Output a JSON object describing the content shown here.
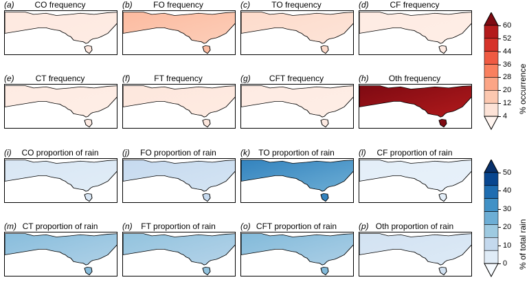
{
  "panels": [
    {
      "letter": "(a)",
      "title": "CO frequency",
      "level": 0.06,
      "colormap": "reds"
    },
    {
      "letter": "(b)",
      "title": "FO frequency",
      "level": 0.22,
      "colormap": "reds"
    },
    {
      "letter": "(c)",
      "title": "TO frequency",
      "level": 0.12,
      "colormap": "reds"
    },
    {
      "letter": "(d)",
      "title": "CF frequency",
      "level": 0.05,
      "colormap": "reds"
    },
    {
      "letter": "(e)",
      "title": "CT frequency",
      "level": 0.05,
      "colormap": "reds"
    },
    {
      "letter": "(f)",
      "title": "FT frequency",
      "level": 0.07,
      "colormap": "reds"
    },
    {
      "letter": "(g)",
      "title": "CFT frequency",
      "level": 0.05,
      "colormap": "reds"
    },
    {
      "letter": "(h)",
      "title": "Oth frequency",
      "level": 0.88,
      "colormap": "reds"
    },
    {
      "letter": "(i)",
      "title": "CO proportion of rain",
      "level": 0.12,
      "colormap": "blues"
    },
    {
      "letter": "(j)",
      "title": "FO proportion of rain",
      "level": 0.18,
      "colormap": "blues"
    },
    {
      "letter": "(k)",
      "title": "TO proportion of rain",
      "level": 0.5,
      "colormap": "blues"
    },
    {
      "letter": "(l)",
      "title": "CF proportion of rain",
      "level": 0.08,
      "colormap": "blues"
    },
    {
      "letter": "(m)",
      "title": "CT proportion of rain",
      "level": 0.32,
      "colormap": "blues"
    },
    {
      "letter": "(n)",
      "title": "FT proportion of rain",
      "level": 0.3,
      "colormap": "blues"
    },
    {
      "letter": "(o)",
      "title": "CFT proportion of rain",
      "level": 0.33,
      "colormap": "blues"
    },
    {
      "letter": "(p)",
      "title": "Oth proportion of rain",
      "level": 0.14,
      "colormap": "blues"
    }
  ],
  "colorbars": [
    {
      "label": "% occurrence",
      "ticks": [
        "60",
        "52",
        "44",
        "36",
        "28",
        "20",
        "12",
        "4"
      ],
      "colormap": "reds",
      "colors": [
        "#fff5f0",
        "#fde3d7",
        "#fcc8b0",
        "#fca586",
        "#f9805f",
        "#ef5a42",
        "#d6332a",
        "#b31b1c",
        "#7e0a12"
      ]
    },
    {
      "label": "% of total rain",
      "ticks": [
        "50",
        "40",
        "30",
        "20",
        "10",
        "0"
      ],
      "colormap": "blues",
      "colors": [
        "#f7fbff",
        "#e0ecf7",
        "#c4d9ee",
        "#9ecae1",
        "#6daed5",
        "#4191c6",
        "#1e6db1",
        "#08468f",
        "#08306b"
      ]
    }
  ]
}
